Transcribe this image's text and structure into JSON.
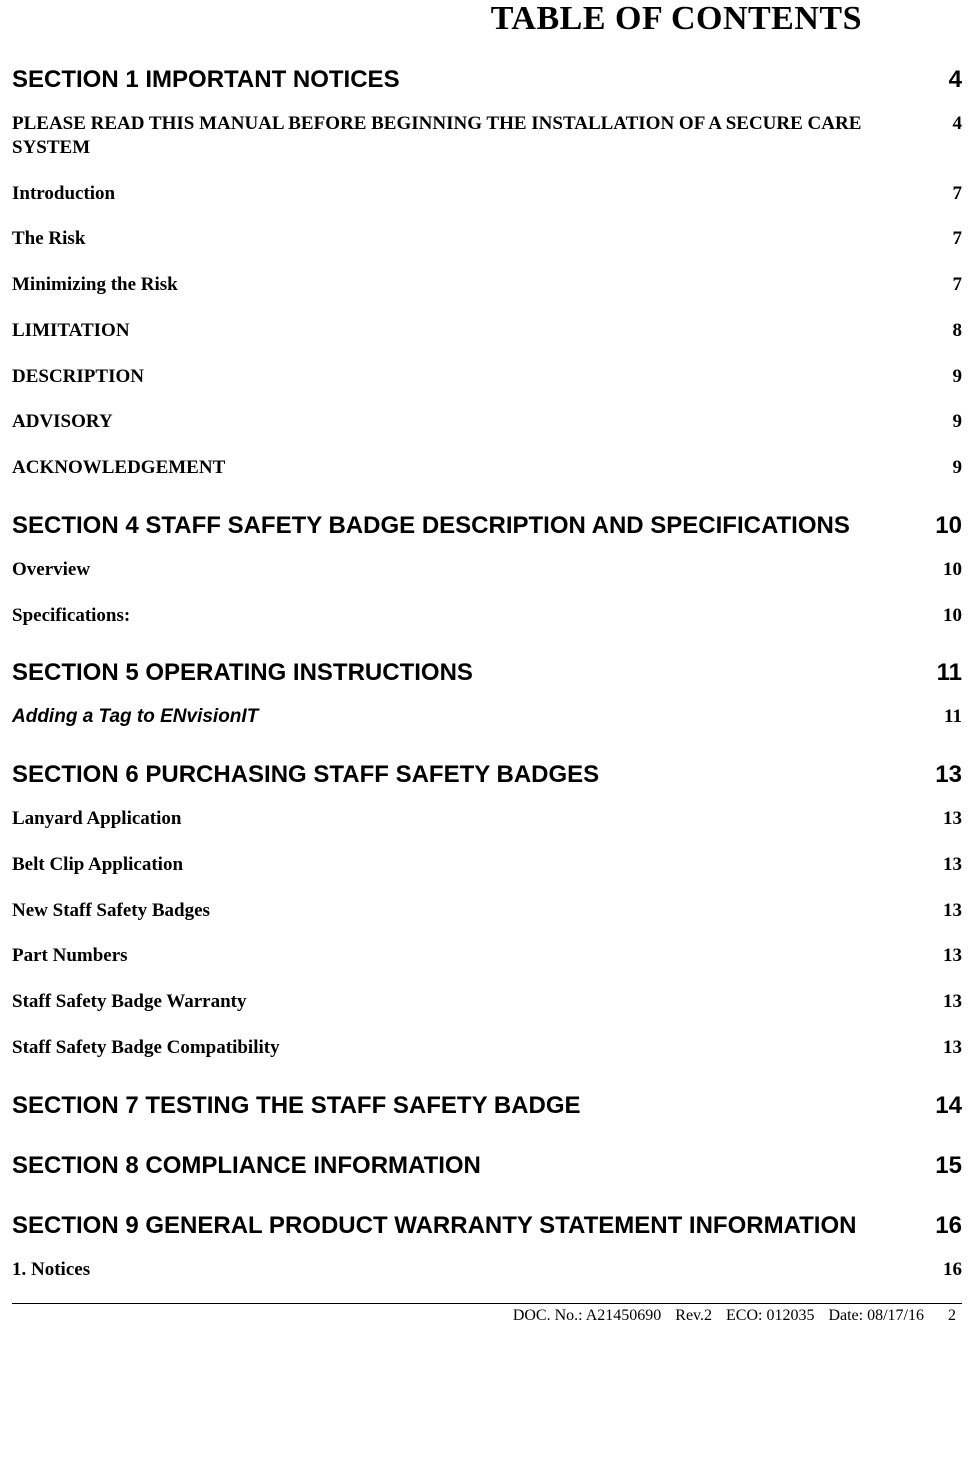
{
  "colors": {
    "text": "#000000",
    "background": "#ffffff",
    "rule": "#000000"
  },
  "title": "TABLE OF CONTENTS",
  "entries": [
    {
      "type": "section",
      "label": "SECTION 1 IMPORTANT NOTICES",
      "page": "4"
    },
    {
      "type": "sub",
      "label": "PLEASE READ THIS MANUAL BEFORE BEGINNING THE INSTALLATION OF A SECURE CARE SYSTEM",
      "page": "4"
    },
    {
      "type": "sub",
      "label": "Introduction",
      "page": "7"
    },
    {
      "type": "sub",
      "label": "The Risk",
      "page": "7"
    },
    {
      "type": "sub",
      "label": "Minimizing the Risk",
      "page": "7"
    },
    {
      "type": "sub",
      "label": "LIMITATION",
      "page": "8"
    },
    {
      "type": "sub",
      "label": "DESCRIPTION",
      "page": "9"
    },
    {
      "type": "sub",
      "label": "ADVISORY",
      "page": "9"
    },
    {
      "type": "sub",
      "label": "ACKNOWLEDGEMENT",
      "page": "9"
    },
    {
      "type": "section",
      "label": "SECTION 4 STAFF SAFETY BADGE DESCRIPTION AND SPECIFICATIONS",
      "page": "10"
    },
    {
      "type": "sub",
      "label": "Overview",
      "page": "10"
    },
    {
      "type": "sub",
      "label": "Specifications:",
      "page": "10"
    },
    {
      "type": "section",
      "label": "SECTION 5  OPERATING INSTRUCTIONS",
      "page": "11"
    },
    {
      "type": "sub-italic-sans",
      "label": "Adding a Tag to ENvisionIT",
      "page": "11"
    },
    {
      "type": "section",
      "label": "SECTION 6 PURCHASING STAFF SAFETY BADGES",
      "page": "13"
    },
    {
      "type": "sub",
      "label": "Lanyard Application",
      "page": "13"
    },
    {
      "type": "sub",
      "label": "Belt Clip Application",
      "page": "13"
    },
    {
      "type": "sub",
      "label": "New Staff Safety Badges",
      "page": "13"
    },
    {
      "type": "sub",
      "label": "Part Numbers",
      "page": "13"
    },
    {
      "type": "sub",
      "label": "Staff Safety Badge Warranty",
      "page": "13"
    },
    {
      "type": "sub",
      "label": "Staff Safety Badge Compatibility",
      "page": "13"
    },
    {
      "type": "section",
      "label": "SECTION 7 TESTING THE STAFF SAFETY BADGE",
      "page": "14"
    },
    {
      "type": "section",
      "label": "SECTION 8  COMPLIANCE INFORMATION",
      "page": "15"
    },
    {
      "type": "section",
      "label": "SECTION 9 GENERAL PRODUCT WARRANTY STATEMENT INFORMATION",
      "page": "16"
    },
    {
      "type": "sub",
      "label": "1.  Notices",
      "page": "16"
    }
  ],
  "footer": {
    "doc_no": "DOC. No.:  A21450690",
    "rev": "Rev.2",
    "eco": "ECO: 012035",
    "date": "Date: 08/17/16",
    "page_number": "2"
  }
}
